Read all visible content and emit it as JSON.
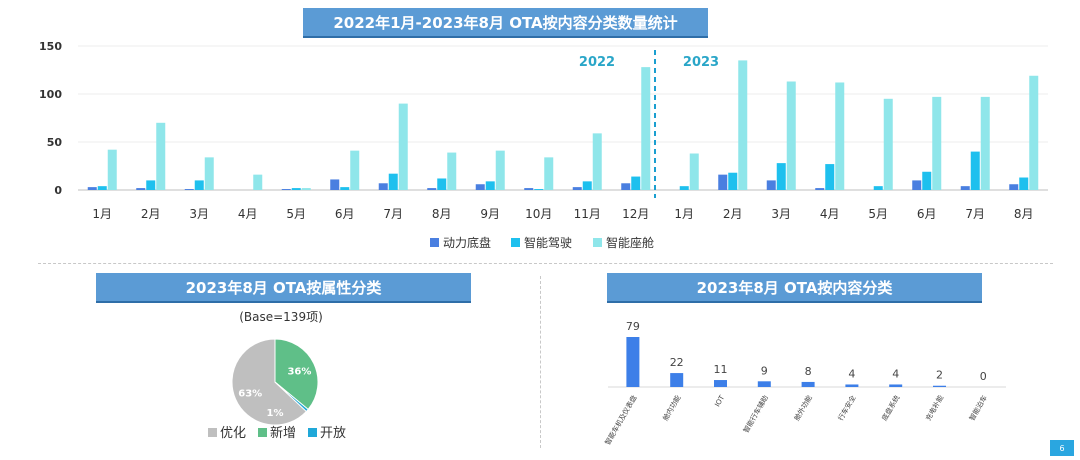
{
  "page": {
    "main_title": "2022年1月-2023年8月 OTA按内容分类数量统计",
    "pie_title": "2023年8月 OTA按属性分类",
    "bar2_title": "2023年8月 OTA按内容分类",
    "page_number": "6"
  },
  "colors": {
    "power": "#4a7fe0",
    "adas": "#1ec0ee",
    "cockpit": "#8fe6ea",
    "optimize": "#bfbfbf",
    "new": "#5fbf88",
    "open": "#20a8d8",
    "bar2": "#3d7fe8",
    "year_label": "#2aa6c8"
  },
  "chart_data": [
    {
      "type": "bar",
      "title": "2022年1月-2023年8月 OTA按内容分类数量统计",
      "categories": [
        "1月",
        "2月",
        "3月",
        "4月",
        "5月",
        "6月",
        "7月",
        "8月",
        "9月",
        "10月",
        "11月",
        "12月",
        "1月",
        "2月",
        "3月",
        "4月",
        "5月",
        "6月",
        "7月",
        "8月"
      ],
      "series": [
        {
          "name": "动力底盘",
          "values": [
            3,
            2,
            1,
            0,
            1,
            11,
            7,
            2,
            6,
            2,
            3,
            7,
            0,
            16,
            10,
            2,
            0,
            10,
            4,
            6
          ]
        },
        {
          "name": "智能驾驶",
          "values": [
            4,
            10,
            10,
            0,
            2,
            3,
            17,
            12,
            9,
            1,
            9,
            14,
            4,
            18,
            28,
            27,
            4,
            19,
            40,
            13
          ]
        },
        {
          "name": "智能座舱",
          "values": [
            42,
            70,
            34,
            16,
            2,
            41,
            90,
            39,
            41,
            34,
            59,
            128,
            38,
            135,
            113,
            112,
            95,
            97,
            97,
            119
          ]
        }
      ],
      "ylim": [
        0,
        150
      ],
      "yticks": [
        0,
        50,
        100,
        150
      ],
      "annotations": [
        "2022",
        "2023"
      ],
      "legend": "bottom"
    },
    {
      "type": "pie",
      "title": "2023年8月 OTA按属性分类",
      "subtitle": "(Base=139项)",
      "labels": [
        "优化",
        "新增",
        "开放"
      ],
      "values": [
        63,
        36,
        1
      ],
      "value_labels": [
        "63%",
        "36%",
        "1%"
      ],
      "legend": "bottom"
    },
    {
      "type": "bar",
      "title": "2023年8月 OTA按内容分类",
      "categories": [
        "智能车机及仪表盘",
        "舱内功能",
        "IOT",
        "智能行车辅助",
        "舱外功能",
        "行车安全",
        "底盘系统",
        "充电补能",
        "智能泊车"
      ],
      "values": [
        79,
        22,
        11,
        9,
        8,
        4,
        4,
        2,
        0
      ]
    }
  ]
}
